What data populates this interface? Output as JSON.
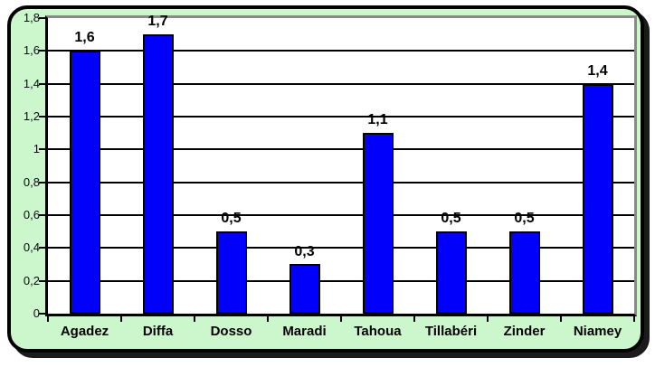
{
  "chart_data": {
    "type": "bar",
    "title": "",
    "categories": [
      "Agadez",
      "Diffa",
      "Dosso",
      "Maradi",
      "Tahoua",
      "Tillabéri",
      "Zinder",
      "Niamey"
    ],
    "values": [
      1.6,
      1.7,
      0.5,
      0.3,
      1.1,
      0.5,
      0.5,
      1.4
    ],
    "value_labels": [
      "1,6",
      "1,7",
      "0,5",
      "0,3",
      "1,1",
      "0,5",
      "0,5",
      "1,4"
    ],
    "xlabel": "",
    "ylabel": "",
    "ylim": [
      0,
      1.8
    ],
    "ytick_values": [
      0,
      0.2,
      0.4,
      0.6,
      0.8,
      1,
      1.2,
      1.4,
      1.6,
      1.8
    ],
    "ytick_labels": [
      "0",
      "0,2",
      "0,4",
      "0,6",
      "0,8",
      "1",
      "1,2",
      "1,4",
      "1,6",
      "1,8"
    ],
    "grid": true,
    "legend_position": "none",
    "decimal_separator": ",",
    "colors": {
      "bar_fill": "#0000fb",
      "bar_border": "#000000",
      "frame_background": "#ccf7cc",
      "frame_border": "#000000",
      "frame_shadow": "#1b1b1b",
      "plot_background": "#ffffff",
      "plot_border": "#8a8a8a",
      "gridline": "#000000",
      "axis": "#000000",
      "text": "#000000"
    }
  }
}
